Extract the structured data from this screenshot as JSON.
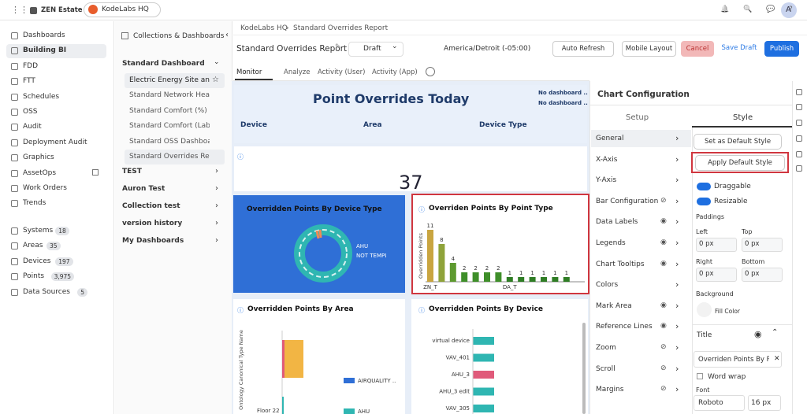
{
  "topbar": {
    "org": "ZEN Estate",
    "site": "KodeLabs HQ",
    "avatar": "A"
  },
  "sidebar": {
    "nav": [
      "Dashboards",
      "Building BI",
      "FDD",
      "FTT",
      "Schedules",
      "OSS",
      "Audit",
      "Deployment Audit",
      "Graphics",
      "AssetOps",
      "Work Orders",
      "Trends"
    ],
    "entities": [
      {
        "label": "Systems",
        "count": "18"
      },
      {
        "label": "Areas",
        "count": "35"
      },
      {
        "label": "Devices",
        "count": "197"
      },
      {
        "label": "Points",
        "count": "3,975"
      },
      {
        "label": "Data Sources",
        "count": "5"
      }
    ]
  },
  "collections": {
    "title": "Collections & Dashboards",
    "group": "Standard Dashboard",
    "items": [
      "Electric Energy Site and S",
      "Standard Network Health",
      "Standard Comfort (%)",
      "Standard Comfort (Label)",
      "Standard OSS Dashboard",
      "Standard Overrides Report"
    ],
    "folders": [
      "TEST",
      "Auron Test",
      "Collection test",
      "version history",
      "My Dashboards"
    ]
  },
  "breadcrumb": [
    "KodeLabs HQ",
    "Standard Overrides Report"
  ],
  "toolbar": {
    "title": "Standard Overrides Report",
    "status": "Draft",
    "timezone": "America/Detroit (-05:00)",
    "auto_refresh": "Auto Refresh",
    "mobile_layout": "Mobile Layout",
    "cancel": "Cancel",
    "save_draft": "Save Draft",
    "publish": "Publish"
  },
  "tabs": [
    "Monitor",
    "Analyze",
    "Activity (User)",
    "Activity (App)"
  ],
  "dashboard": {
    "header_title": "Point Overrides Today",
    "notes": [
      "No dashboard ..",
      "No dashboard .."
    ],
    "columns": [
      "Device",
      "Area",
      "Device Type"
    ],
    "kpi": 37,
    "donut": {
      "title": "Overridden Points By Device Type",
      "legend": [
        "AHU",
        "NOT TEMPLATED"
      ]
    },
    "bar": {
      "title": "Overriden Points By Point Type",
      "y_label": "Overridden Points",
      "categories": [
        "ZN_T",
        null,
        null,
        null,
        null,
        null,
        null,
        "DA_T",
        null,
        null,
        null,
        null,
        null
      ],
      "values": [
        11,
        8,
        4,
        2,
        2,
        2,
        2,
        1,
        1,
        1,
        1,
        1,
        1
      ],
      "colors": [
        "#c9a540",
        "#8fa33a",
        "#5e9a30",
        "#3f8f2a",
        "#3f8f2a",
        "#3f8f2a",
        "#3f8f2a",
        "#2f7d25",
        "#2f7d25",
        "#2f7d25",
        "#2f7d25",
        "#2f7d25",
        "#2f7d25"
      ]
    },
    "area": {
      "title": "Overridden Points By Area",
      "y_label": "Ontology Canonical Type Name",
      "category": "Floor 22",
      "legend": [
        "AIRQUALITY ..",
        "AHU"
      ]
    },
    "device": {
      "title": "Overridden Points By Device",
      "categories": [
        "virtual device",
        "VAV_401",
        "AHU_3",
        "AHU_3 edit",
        "VAV_305"
      ]
    }
  },
  "config": {
    "title": "Chart Configuration",
    "tabs": [
      "Setup",
      "Style"
    ],
    "sections": [
      "General",
      "X-Axis",
      "Y-Axis",
      "Bar Configuration",
      "Data Labels",
      "Legends",
      "Chart Tooltips",
      "Colors",
      "Mark Area",
      "Reference Lines",
      "Zoom",
      "Scroll",
      "Margins"
    ],
    "style": {
      "set_default": "Set as Default Style",
      "apply_default": "Apply Default Style",
      "draggable": "Draggable",
      "resizable": "Resizable",
      "paddings": "Paddings",
      "left": "Left",
      "top": "Top",
      "right": "Right",
      "bottom": "Bottom",
      "padding_value": "0 px",
      "background": "Background",
      "fill_color": "Fill Color",
      "title": "Title",
      "title_value": "Overriden Points By Po",
      "word_wrap": "Word wrap",
      "font": "Font",
      "font_value": "Roboto",
      "font_size": "16 px"
    }
  }
}
